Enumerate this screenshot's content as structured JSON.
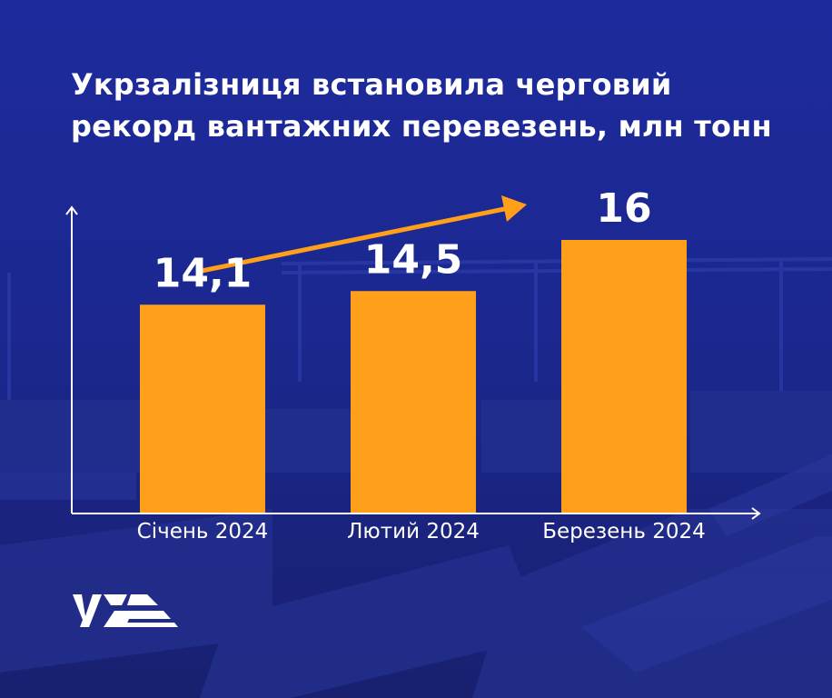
{
  "title_lines": [
    "Укрзалізниця встановила черговий",
    "рекорд вантажних перевезень, млн тонн"
  ],
  "logo_icon": "uz-logo-icon",
  "colors": {
    "background": "#1e2a9a",
    "bar": "#ff9f1a",
    "arrow": "#ff9f1a",
    "text": "#ffffff"
  },
  "chart_data": {
    "type": "bar",
    "title": "Укрзалізниця встановила черговий рекорд вантажних перевезень, млн тонн",
    "categories": [
      "Січень 2024",
      "Лютий 2024",
      "Березень 2024"
    ],
    "values": [
      14.1,
      14.5,
      16
    ],
    "value_labels": [
      "14,1",
      "14,5",
      "16"
    ],
    "xlabel": "",
    "ylabel": "",
    "unit": "млн тонн",
    "trend_arrow": "up",
    "grid": false
  }
}
